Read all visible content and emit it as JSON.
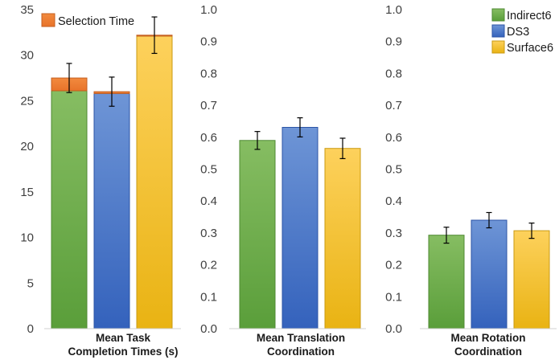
{
  "chart_data": [
    {
      "type": "bar",
      "categories": [
        "Mean Task Completion Times (s)"
      ],
      "category_lines": [
        "Mean Task",
        "Completion Times (s)"
      ],
      "series": [
        {
          "name": "Indirect6",
          "values": [
            26.1
          ],
          "error": [
            1.6
          ],
          "selection_time": [
            1.4
          ]
        },
        {
          "name": "DS3",
          "values": [
            25.8
          ],
          "error": [
            1.6
          ],
          "selection_time": [
            0.2
          ]
        },
        {
          "name": "Surface6",
          "values": [
            32.1
          ],
          "error": [
            2.0
          ],
          "selection_time": [
            0.1
          ]
        }
      ],
      "stacked_series_name": "Selection Time",
      "ylim": [
        0,
        35
      ],
      "yticks": [
        "0",
        "5",
        "10",
        "15",
        "20",
        "25",
        "30",
        "35"
      ],
      "grid": false,
      "legend_position": "top-left"
    },
    {
      "type": "bar",
      "categories": [
        "Mean Translation Coordination"
      ],
      "category_lines": [
        "Mean Translation",
        "Coordination"
      ],
      "series": [
        {
          "name": "Indirect6",
          "values": [
            0.59
          ],
          "error": [
            0.028
          ]
        },
        {
          "name": "DS3",
          "values": [
            0.631
          ],
          "error": [
            0.03
          ]
        },
        {
          "name": "Surface6",
          "values": [
            0.565
          ],
          "error": [
            0.032
          ]
        }
      ],
      "ylim": [
        0,
        1
      ],
      "yticks": [
        "0.0",
        "0.1",
        "0.2",
        "0.3",
        "0.4",
        "0.5",
        "0.6",
        "0.7",
        "0.8",
        "0.9",
        "1.0"
      ],
      "grid": false
    },
    {
      "type": "bar",
      "categories": [
        "Mean Rotation Coordination"
      ],
      "category_lines": [
        "Mean Rotation",
        "Coordination"
      ],
      "series": [
        {
          "name": "Indirect6",
          "values": [
            0.293
          ],
          "error": [
            0.025
          ]
        },
        {
          "name": "DS3",
          "values": [
            0.34
          ],
          "error": [
            0.024
          ]
        },
        {
          "name": "Surface6",
          "values": [
            0.307
          ],
          "error": [
            0.024
          ]
        }
      ],
      "ylim": [
        0,
        1
      ],
      "yticks": [
        "0.0",
        "0.1",
        "0.2",
        "0.3",
        "0.4",
        "0.5",
        "0.6",
        "0.7",
        "0.8",
        "0.9",
        "1.0"
      ],
      "grid": false,
      "legend_position": "top-right"
    }
  ],
  "legend": {
    "items": [
      "Indirect6",
      "DS3",
      "Surface6"
    ],
    "selection_item": "Selection Time"
  },
  "colors": {
    "Indirect6": {
      "top": "#86bd62",
      "bottom": "#5a9e3a",
      "stroke": "#4f8a33"
    },
    "DS3": {
      "top": "#6e95d6",
      "bottom": "#3462bc",
      "stroke": "#2c54a6"
    },
    "Surface6": {
      "top": "#fdd15c",
      "bottom": "#e9b313",
      "stroke": "#c99a12"
    },
    "Selection Time": {
      "top": "#f28a3e",
      "bottom": "#e8732a",
      "stroke": "#c45f20"
    }
  }
}
